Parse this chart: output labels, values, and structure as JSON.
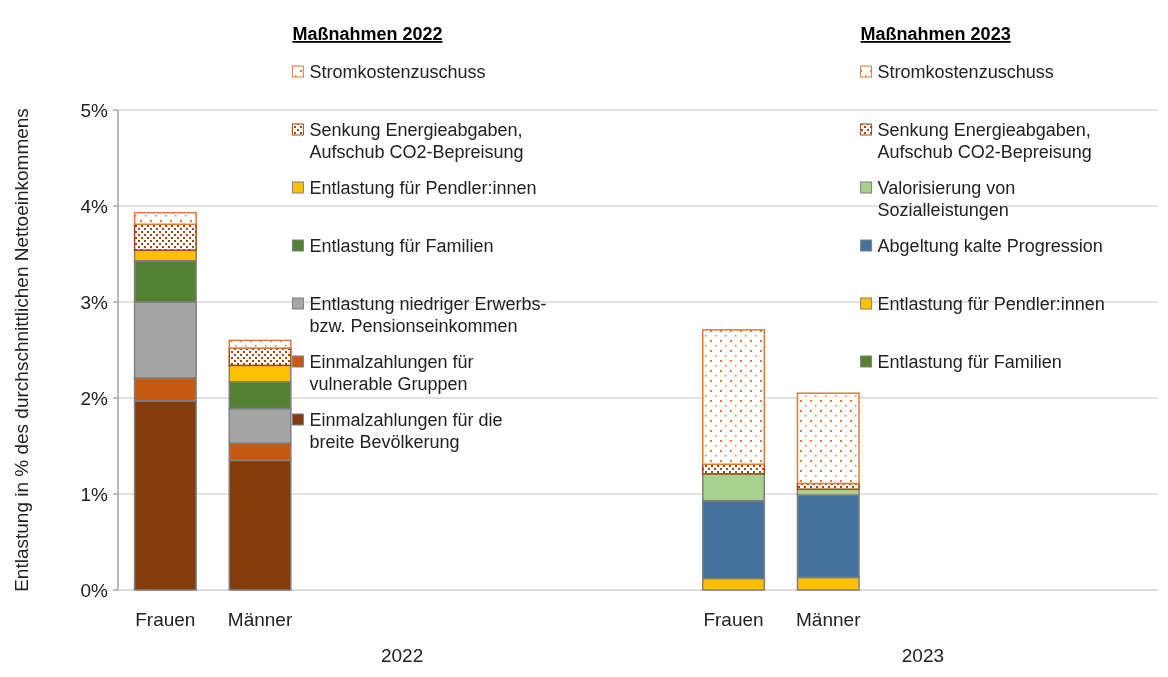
{
  "chart_data": [
    {
      "type": "bar",
      "stacked": true,
      "legend": "right",
      "grid": "y",
      "legend_title": "Maßnahmen 2022",
      "xlabel": "2022",
      "ylabel": "Entlastung in % des durchschnittlichen Nettoeinkommens",
      "categories": [
        "Frauen",
        "Männer",
        null,
        null,
        null,
        null
      ],
      "ylim": [
        0,
        5
      ],
      "yticks": [
        {
          "value": 0,
          "label": "0%"
        },
        {
          "value": 1,
          "label": "1%"
        },
        {
          "value": 2,
          "label": "2%"
        },
        {
          "value": 3,
          "label": "3%"
        },
        {
          "value": 4,
          "label": "4%"
        },
        {
          "value": 5,
          "label": "5%"
        }
      ],
      "series": [
        {
          "name": "Einmalzahlungen für die breite Bevölkerung",
          "color": "#843c0c",
          "values": [
            1.97,
            1.35,
            null,
            null,
            null,
            null
          ]
        },
        {
          "name": "Einmalzahlungen für vulnerable Gruppen",
          "color": "#c55a11",
          "values": [
            0.24,
            0.18,
            null,
            null,
            null,
            null
          ]
        },
        {
          "name": "Entlastung niedriger Erwerbs- bzw. Pensionseinkommen",
          "color": "#a5a5a5",
          "values": [
            0.79,
            0.36,
            null,
            null,
            null,
            null
          ]
        },
        {
          "name": "Entlastung für Familien",
          "color": "#548235",
          "values": [
            0.43,
            0.28,
            null,
            null,
            null,
            null
          ]
        },
        {
          "name": "Entlastung für Pendler:innen",
          "color": "#ffc000",
          "values": [
            0.11,
            0.17,
            null,
            null,
            null,
            null
          ]
        },
        {
          "name": "Senkung Energieabgaben, Aufschub CO2-Bepreisung",
          "color": "#a0480f",
          "values": [
            0.27,
            0.18,
            null,
            null,
            null,
            null
          ]
        },
        {
          "name": "Stromkostenzuschuss",
          "color": "#e07a3a",
          "values": [
            0.12,
            0.08,
            null,
            null,
            null,
            null
          ]
        }
      ]
    },
    {
      "type": "bar",
      "stacked": true,
      "legend": "right",
      "grid": "y",
      "tick_labels": "x",
      "legend_title": "Maßnahmen 2023",
      "xlabel": "2023",
      "categories": [
        "Frauen",
        "Männer",
        null,
        null,
        null
      ],
      "ylim": [
        0,
        5
      ],
      "yticks": [
        {
          "value": 0,
          "label": null
        },
        {
          "value": 1,
          "label": null
        },
        {
          "value": 2,
          "label": null
        },
        {
          "value": 3,
          "label": null
        },
        {
          "value": 4,
          "label": null
        },
        {
          "value": 5,
          "label": null
        }
      ],
      "series": [
        {
          "name": "Entlastung für Familien",
          "color": "#548235",
          "values": [
            null,
            null,
            null,
            null,
            null
          ]
        },
        {
          "name": "Entlastung für Pendler:innen",
          "color": "#ffc000",
          "values": [
            0.12,
            0.13,
            null,
            null,
            null
          ]
        },
        {
          "name": "Abgeltung kalte Progression",
          "color": "#44729d",
          "values": [
            0.81,
            0.86,
            null,
            null,
            null
          ]
        },
        {
          "name": "Valorisierung von Sozialleistungen",
          "color": "#a9d18e",
          "values": [
            0.28,
            0.06,
            null,
            null,
            null
          ]
        },
        {
          "name": "Senkung Energieabgaben, Aufschub CO2-Bepreisung",
          "color": "#a0480f",
          "values": [
            0.1,
            0.06,
            null,
            null,
            null
          ]
        },
        {
          "name": "Stromkostenzuschuss",
          "color": "#e07a3a",
          "values": [
            1.4,
            0.94,
            null,
            null,
            null
          ]
        }
      ]
    }
  ]
}
